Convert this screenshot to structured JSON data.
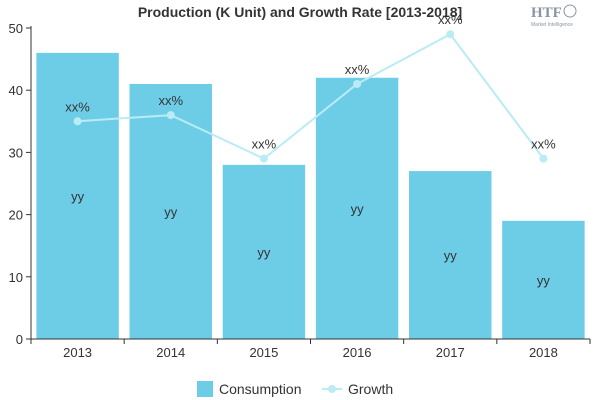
{
  "chart_data": {
    "type": "bar",
    "title": "Production (K Unit) and Growth Rate [2013-2018]",
    "categories": [
      "2013",
      "2014",
      "2015",
      "2016",
      "2017",
      "2018"
    ],
    "ylim": [
      0,
      50
    ],
    "yticks": [
      "0",
      "10",
      "20",
      "30",
      "40",
      "50"
    ],
    "grid": false,
    "legend_position": "bottom",
    "series": [
      {
        "name": "Consumption",
        "type": "bar",
        "color": "#6ecde6",
        "values": [
          46,
          41,
          28,
          42,
          27,
          19
        ],
        "labels": [
          "yy",
          "yy",
          "yy",
          "yy",
          "yy",
          "yy"
        ]
      },
      {
        "name": "Growth",
        "type": "line",
        "color": "#b9ecf5",
        "values": [
          35,
          36,
          29,
          41,
          49,
          29
        ],
        "labels": [
          "xx%",
          "xx%",
          "xx%",
          "xx%",
          "xx%",
          "xx%"
        ]
      }
    ]
  },
  "logo": {
    "text": "HTF",
    "subtext": "Market Intelligence"
  }
}
